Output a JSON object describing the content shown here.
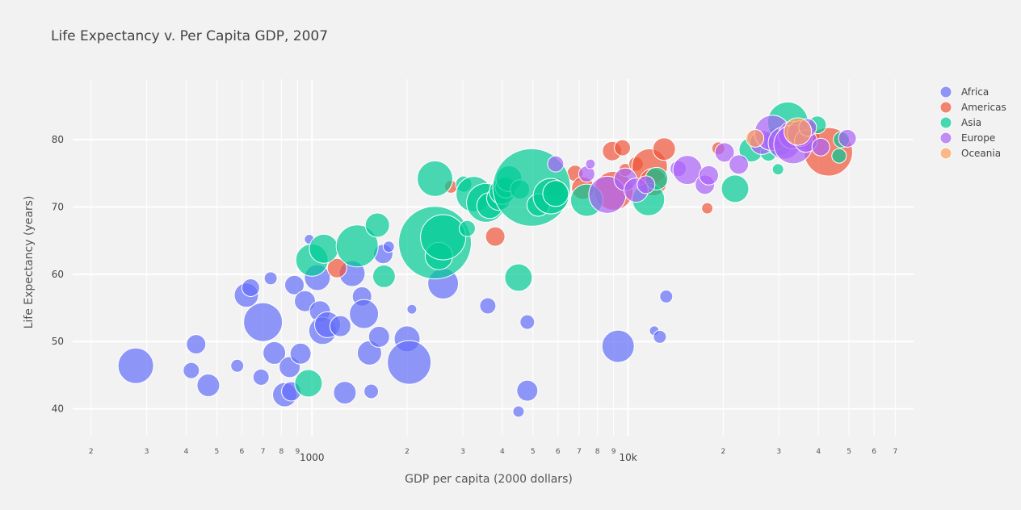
{
  "chart_data": {
    "type": "scatter",
    "title": "Life Expectancy v. Per Capita GDP, 2007",
    "xlabel": "GDP per capita (2000 dollars)",
    "ylabel": "Life Expectancy (years)",
    "x_scale": "log",
    "xlim": [
      175,
      80000
    ],
    "ylim": [
      36,
      89
    ],
    "grid": true,
    "legend_position": "top-right",
    "y_ticks": [
      40,
      50,
      60,
      70,
      80
    ],
    "x_ticks": [
      {
        "value": 200,
        "label": "2"
      },
      {
        "value": 300,
        "label": "3"
      },
      {
        "value": 400,
        "label": "4"
      },
      {
        "value": 500,
        "label": "5"
      },
      {
        "value": 600,
        "label": "6"
      },
      {
        "value": 700,
        "label": "7"
      },
      {
        "value": 800,
        "label": "8"
      },
      {
        "value": 900,
        "label": "9"
      },
      {
        "value": 1000,
        "label": "1000"
      },
      {
        "value": 2000,
        "label": "2"
      },
      {
        "value": 3000,
        "label": "3"
      },
      {
        "value": 4000,
        "label": "4"
      },
      {
        "value": 5000,
        "label": "5"
      },
      {
        "value": 6000,
        "label": "6"
      },
      {
        "value": 7000,
        "label": "7"
      },
      {
        "value": 8000,
        "label": "8"
      },
      {
        "value": 9000,
        "label": "9"
      },
      {
        "value": 10000,
        "label": "10k"
      },
      {
        "value": 20000,
        "label": "2"
      },
      {
        "value": 30000,
        "label": "3"
      },
      {
        "value": 40000,
        "label": "4"
      },
      {
        "value": 50000,
        "label": "5"
      },
      {
        "value": 60000,
        "label": "6"
      },
      {
        "value": 70000,
        "label": "7"
      }
    ],
    "series": [
      {
        "name": "Africa",
        "color": "#636efa",
        "points": [
          {
            "x": 277,
            "y": 46.4,
            "r": 22
          },
          {
            "x": 430,
            "y": 49.6,
            "r": 12
          },
          {
            "x": 415,
            "y": 45.7,
            "r": 10
          },
          {
            "x": 470,
            "y": 43.5,
            "r": 14
          },
          {
            "x": 580,
            "y": 46.4,
            "r": 8
          },
          {
            "x": 620,
            "y": 56.9,
            "r": 15
          },
          {
            "x": 640,
            "y": 58.0,
            "r": 11
          },
          {
            "x": 690,
            "y": 44.7,
            "r": 10
          },
          {
            "x": 700,
            "y": 52.9,
            "r": 24
          },
          {
            "x": 740,
            "y": 59.4,
            "r": 8
          },
          {
            "x": 760,
            "y": 48.3,
            "r": 14
          },
          {
            "x": 820,
            "y": 42.1,
            "r": 15
          },
          {
            "x": 850,
            "y": 46.2,
            "r": 13
          },
          {
            "x": 860,
            "y": 42.6,
            "r": 12
          },
          {
            "x": 880,
            "y": 58.4,
            "r": 12
          },
          {
            "x": 920,
            "y": 48.2,
            "r": 13
          },
          {
            "x": 950,
            "y": 56.0,
            "r": 13
          },
          {
            "x": 980,
            "y": 65.2,
            "r": 6
          },
          {
            "x": 1040,
            "y": 59.5,
            "r": 16
          },
          {
            "x": 1060,
            "y": 54.5,
            "r": 13
          },
          {
            "x": 1080,
            "y": 51.6,
            "r": 17
          },
          {
            "x": 1120,
            "y": 52.5,
            "r": 16
          },
          {
            "x": 1230,
            "y": 52.3,
            "r": 13
          },
          {
            "x": 1270,
            "y": 42.4,
            "r": 14
          },
          {
            "x": 1340,
            "y": 60.1,
            "r": 16
          },
          {
            "x": 1440,
            "y": 56.7,
            "r": 12
          },
          {
            "x": 1460,
            "y": 54.1,
            "r": 18
          },
          {
            "x": 1520,
            "y": 48.3,
            "r": 15
          },
          {
            "x": 1540,
            "y": 42.6,
            "r": 9
          },
          {
            "x": 1630,
            "y": 50.7,
            "r": 13
          },
          {
            "x": 1680,
            "y": 63.0,
            "r": 12
          },
          {
            "x": 1750,
            "y": 64.1,
            "r": 7
          },
          {
            "x": 2000,
            "y": 50.4,
            "r": 16
          },
          {
            "x": 2030,
            "y": 46.9,
            "r": 27
          },
          {
            "x": 2070,
            "y": 54.8,
            "r": 6
          },
          {
            "x": 2600,
            "y": 58.6,
            "r": 19
          },
          {
            "x": 3600,
            "y": 55.3,
            "r": 10
          },
          {
            "x": 4500,
            "y": 39.6,
            "r": 7
          },
          {
            "x": 4800,
            "y": 52.9,
            "r": 9
          },
          {
            "x": 4800,
            "y": 42.7,
            "r": 13
          },
          {
            "x": 9300,
            "y": 49.3,
            "r": 20
          },
          {
            "x": 12100,
            "y": 51.6,
            "r": 6
          },
          {
            "x": 12600,
            "y": 50.7,
            "r": 8
          },
          {
            "x": 13200,
            "y": 56.7,
            "r": 8
          }
        ]
      },
      {
        "name": "Americas",
        "color": "#ef553b",
        "points": [
          {
            "x": 1200,
            "y": 60.9,
            "r": 12
          },
          {
            "x": 2750,
            "y": 73.0,
            "r": 8
          },
          {
            "x": 3800,
            "y": 65.6,
            "r": 12
          },
          {
            "x": 5900,
            "y": 72.9,
            "r": 12
          },
          {
            "x": 6800,
            "y": 75.0,
            "r": 10
          },
          {
            "x": 7200,
            "y": 72.8,
            "r": 14
          },
          {
            "x": 8900,
            "y": 78.3,
            "r": 12
          },
          {
            "x": 9000,
            "y": 72.4,
            "r": 24
          },
          {
            "x": 9600,
            "y": 78.8,
            "r": 10
          },
          {
            "x": 9800,
            "y": 75.5,
            "r": 8
          },
          {
            "x": 10600,
            "y": 76.4,
            "r": 9
          },
          {
            "x": 11700,
            "y": 76.0,
            "r": 22
          },
          {
            "x": 12000,
            "y": 73.7,
            "r": 17
          },
          {
            "x": 13000,
            "y": 78.6,
            "r": 14
          },
          {
            "x": 17800,
            "y": 69.8,
            "r": 7
          },
          {
            "x": 19300,
            "y": 78.7,
            "r": 8
          },
          {
            "x": 36300,
            "y": 80.7,
            "r": 18
          },
          {
            "x": 43000,
            "y": 78.2,
            "r": 30
          }
        ]
      },
      {
        "name": "Asia",
        "color": "#00cc96",
        "points": [
          {
            "x": 975,
            "y": 43.8,
            "r": 17
          },
          {
            "x": 1000,
            "y": 62.1,
            "r": 20
          },
          {
            "x": 1090,
            "y": 63.8,
            "r": 18
          },
          {
            "x": 1390,
            "y": 64.2,
            "r": 26
          },
          {
            "x": 1610,
            "y": 67.3,
            "r": 15
          },
          {
            "x": 1690,
            "y": 59.7,
            "r": 14
          },
          {
            "x": 2450,
            "y": 64.7,
            "r": 45
          },
          {
            "x": 2450,
            "y": 74.2,
            "r": 22
          },
          {
            "x": 2520,
            "y": 62.7,
            "r": 17
          },
          {
            "x": 2600,
            "y": 65.5,
            "r": 28
          },
          {
            "x": 3020,
            "y": 73.4,
            "r": 10
          },
          {
            "x": 3100,
            "y": 66.8,
            "r": 10
          },
          {
            "x": 3250,
            "y": 71.9,
            "r": 22
          },
          {
            "x": 3550,
            "y": 70.6,
            "r": 24
          },
          {
            "x": 3650,
            "y": 70.2,
            "r": 16
          },
          {
            "x": 3900,
            "y": 71.3,
            "r": 15
          },
          {
            "x": 4000,
            "y": 72.3,
            "r": 16
          },
          {
            "x": 4100,
            "y": 72.9,
            "r": 13
          },
          {
            "x": 4200,
            "y": 74.2,
            "r": 16
          },
          {
            "x": 4500,
            "y": 59.5,
            "r": 17
          },
          {
            "x": 4550,
            "y": 72.6,
            "r": 12
          },
          {
            "x": 4950,
            "y": 72.9,
            "r": 48
          },
          {
            "x": 5200,
            "y": 70.3,
            "r": 14
          },
          {
            "x": 5700,
            "y": 71.6,
            "r": 22
          },
          {
            "x": 5900,
            "y": 72.0,
            "r": 16
          },
          {
            "x": 7400,
            "y": 71.0,
            "r": 20
          },
          {
            "x": 11600,
            "y": 71.1,
            "r": 20
          },
          {
            "x": 12300,
            "y": 74.2,
            "r": 14
          },
          {
            "x": 21800,
            "y": 72.7,
            "r": 17
          },
          {
            "x": 24500,
            "y": 78.5,
            "r": 15
          },
          {
            "x": 27800,
            "y": 78.0,
            "r": 10
          },
          {
            "x": 28600,
            "y": 80.2,
            "r": 11
          },
          {
            "x": 29800,
            "y": 75.6,
            "r": 7
          },
          {
            "x": 30000,
            "y": 79.8,
            "r": 18
          },
          {
            "x": 32000,
            "y": 82.6,
            "r": 25
          },
          {
            "x": 39700,
            "y": 82.2,
            "r": 11
          },
          {
            "x": 46500,
            "y": 77.6,
            "r": 9
          },
          {
            "x": 47300,
            "y": 80.0,
            "r": 10
          }
        ]
      },
      {
        "name": "Europe",
        "color": "#ab63fa",
        "points": [
          {
            "x": 5900,
            "y": 76.4,
            "r": 10
          },
          {
            "x": 7400,
            "y": 74.9,
            "r": 10
          },
          {
            "x": 7600,
            "y": 76.4,
            "r": 6
          },
          {
            "x": 8600,
            "y": 71.8,
            "r": 23
          },
          {
            "x": 9800,
            "y": 74.1,
            "r": 14
          },
          {
            "x": 10600,
            "y": 72.5,
            "r": 15
          },
          {
            "x": 11400,
            "y": 73.3,
            "r": 11
          },
          {
            "x": 14400,
            "y": 75.7,
            "r": 10
          },
          {
            "x": 15400,
            "y": 75.5,
            "r": 18
          },
          {
            "x": 17500,
            "y": 73.3,
            "r": 12
          },
          {
            "x": 18000,
            "y": 74.7,
            "r": 12
          },
          {
            "x": 20200,
            "y": 78.1,
            "r": 12
          },
          {
            "x": 22400,
            "y": 76.3,
            "r": 12
          },
          {
            "x": 25500,
            "y": 80.2,
            "r": 11
          },
          {
            "x": 26500,
            "y": 79.6,
            "r": 15
          },
          {
            "x": 28600,
            "y": 81.0,
            "r": 22
          },
          {
            "x": 31200,
            "y": 79.5,
            "r": 20
          },
          {
            "x": 33000,
            "y": 80.7,
            "r": 17
          },
          {
            "x": 33300,
            "y": 79.3,
            "r": 24
          },
          {
            "x": 35000,
            "y": 80.9,
            "r": 16
          },
          {
            "x": 36500,
            "y": 79.8,
            "r": 14
          },
          {
            "x": 37000,
            "y": 81.8,
            "r": 11
          },
          {
            "x": 40700,
            "y": 78.9,
            "r": 11
          },
          {
            "x": 49400,
            "y": 80.2,
            "r": 11
          }
        ]
      },
      {
        "name": "Oceania",
        "color": "#ffa15a",
        "points": [
          {
            "x": 25200,
            "y": 80.2,
            "r": 11
          },
          {
            "x": 34400,
            "y": 81.2,
            "r": 17
          }
        ]
      }
    ]
  }
}
